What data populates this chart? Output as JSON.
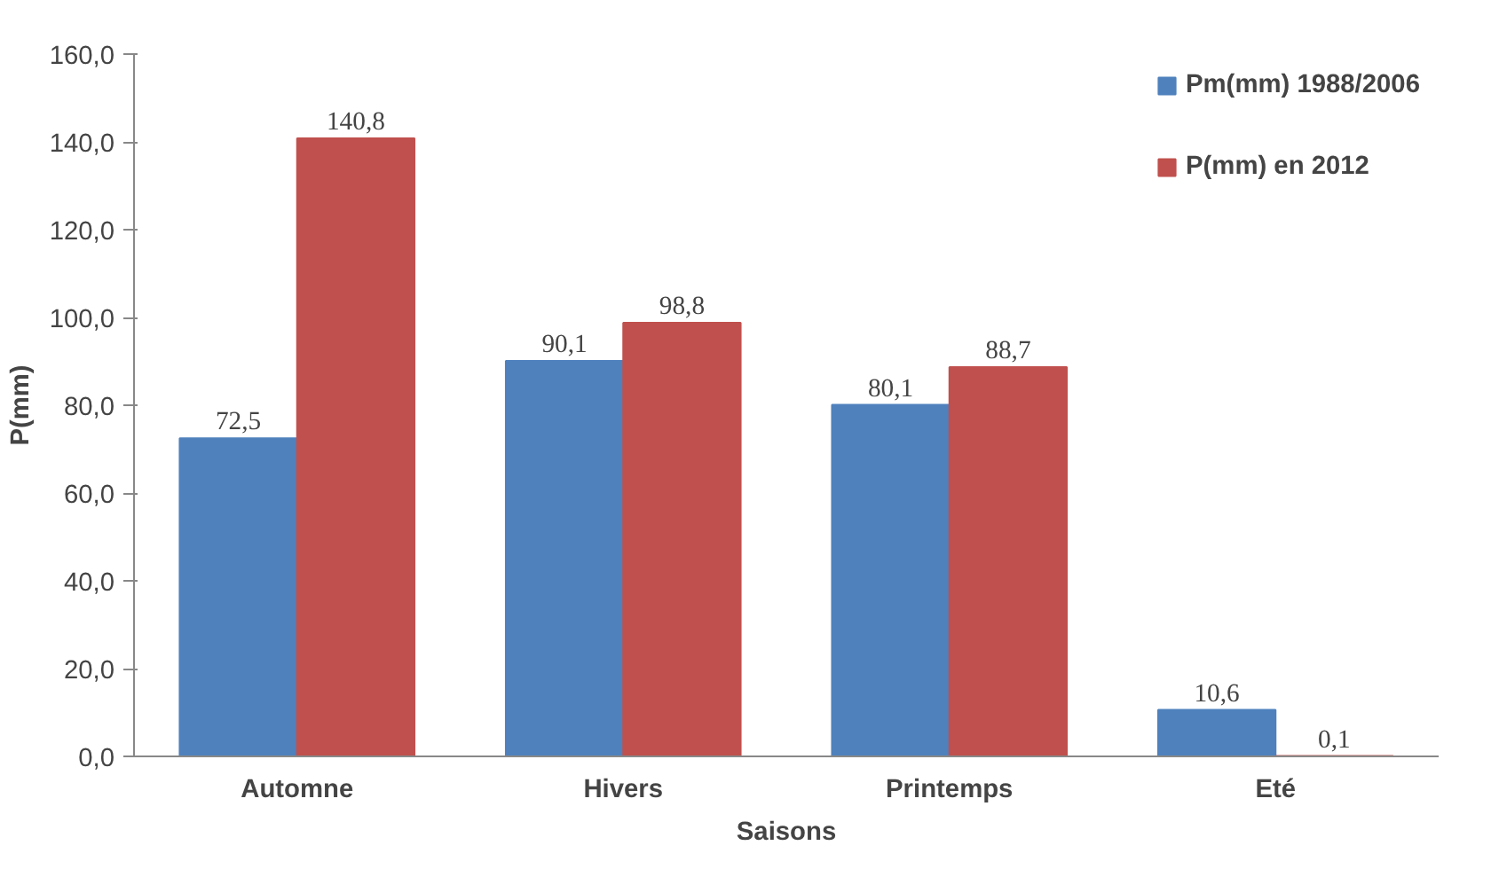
{
  "chart_data": {
    "type": "bar",
    "xlabel": "Saisons",
    "ylabel": "P(mm)",
    "categories": [
      "Automne",
      "Hivers",
      "Printemps",
      "Eté"
    ],
    "series": [
      {
        "name": "Pm(mm) 1988/2006",
        "color": "#4f81bd",
        "values": [
          72.5,
          90.1,
          80.1,
          10.6
        ],
        "value_labels": [
          "72,5",
          "90,1",
          "80,1",
          "10,6"
        ]
      },
      {
        "name": "P(mm) en 2012",
        "color": "#c0504d",
        "values": [
          140.8,
          98.8,
          88.7,
          0.1
        ],
        "value_labels": [
          "140,8",
          "98,8",
          "88,7",
          "0,1"
        ]
      }
    ],
    "ylim": [
      0,
      160
    ],
    "yticks": [
      {
        "value": 0,
        "label": "0,0"
      },
      {
        "value": 20,
        "label": "20,0"
      },
      {
        "value": 40,
        "label": "40,0"
      },
      {
        "value": 60,
        "label": "60,0"
      },
      {
        "value": 80,
        "label": "80,0"
      },
      {
        "value": 100,
        "label": "100,0"
      },
      {
        "value": 120,
        "label": "120,0"
      },
      {
        "value": 140,
        "label": "140,0"
      },
      {
        "value": 160,
        "label": "160,0"
      }
    ],
    "grid": false,
    "legend": "top right"
  }
}
